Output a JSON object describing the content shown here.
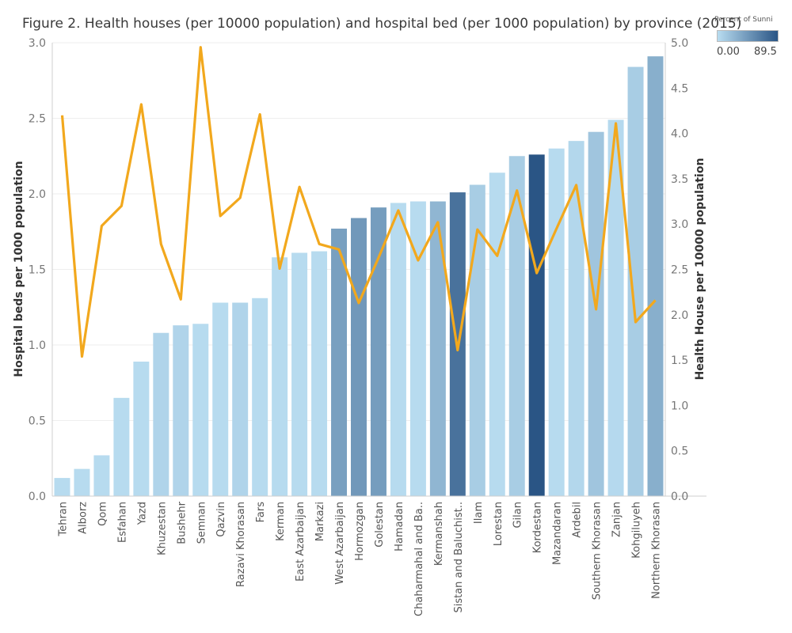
{
  "chart_data": {
    "type": "bar",
    "title": "Figure 2. Health houses (per 10000 population) and hospital bed (per 1000 population) by province (2015)",
    "categories": [
      "Tehran",
      "Alborz",
      "Qom",
      "Esfahan",
      "Yazd",
      "Khuzestan",
      "Bushehr",
      "Semnan",
      "Qazvin",
      "Razavi Khorasan",
      "Fars",
      "Kerman",
      "East Azarbaijan",
      "Markazi",
      "West Azarbaijan",
      "Hormozgan",
      "Golestan",
      "Hamadan",
      "Chaharmahal and Ba..",
      "Kermanshah",
      "Sistan and Baluchist..",
      "Ilam",
      "Lorestan",
      "Gilan",
      "Kordestan",
      "Mazandaran",
      "Ardebil",
      "Southern Khorasan",
      "Zanjan",
      "Kohgiluyeh",
      "Northern Khorasan"
    ],
    "series": [
      {
        "name": "Hospital beds per 1000 population",
        "axis": "left",
        "mark": "bar",
        "values": [
          0.12,
          0.18,
          0.27,
          0.65,
          0.89,
          1.08,
          1.13,
          1.14,
          1.28,
          1.28,
          1.31,
          1.58,
          1.61,
          1.62,
          1.77,
          1.84,
          1.91,
          1.94,
          1.95,
          1.95,
          2.01,
          2.06,
          2.14,
          2.25,
          2.26,
          2.3,
          2.35,
          2.41,
          2.49,
          2.84,
          2.91
        ]
      },
      {
        "name": "Health House per 10000 population",
        "axis": "right",
        "mark": "line",
        "color": "#f2a81d",
        "values": [
          4.2,
          1.54,
          2.98,
          3.2,
          4.32,
          2.78,
          2.17,
          4.95,
          3.09,
          3.29,
          4.21,
          2.51,
          3.41,
          2.78,
          2.72,
          2.13,
          2.63,
          3.15,
          2.6,
          3.02,
          1.61,
          2.94,
          2.65,
          3.37,
          2.46,
          2.95,
          3.43,
          2.06,
          4.11,
          1.92,
          2.16
        ]
      }
    ],
    "color_by": {
      "name": "Percent of Sunni",
      "values": [
        0.5,
        0.5,
        0.5,
        0.5,
        0.5,
        5,
        5,
        0.5,
        0.5,
        5,
        0.5,
        0.5,
        0.5,
        0.5,
        40,
        45,
        42,
        0.5,
        0.5,
        25,
        70,
        10,
        0.5,
        10,
        89.5,
        0.5,
        3,
        15,
        2,
        10,
        30
      ],
      "min_label": "0.00",
      "max_label": "89.5",
      "min": 0,
      "max": 89.5,
      "color_low": "#b8dcf0",
      "color_high": "#2a5585"
    },
    "ylabel": "Hospital beds per 1000 population",
    "y2label": "Health House per 10000 population",
    "ylim": [
      0,
      3.0
    ],
    "y2lim": [
      0,
      5.0
    ],
    "yticks": [
      "0.0",
      "0.5",
      "1.0",
      "1.5",
      "2.0",
      "2.5",
      "3.0"
    ],
    "y2ticks": [
      "0.0",
      "0.5",
      "1.0",
      "1.5",
      "2.0",
      "2.5",
      "3.0",
      "3.5",
      "4.0",
      "4.5",
      "5.0"
    ],
    "grid": true,
    "legend": "top-right"
  }
}
